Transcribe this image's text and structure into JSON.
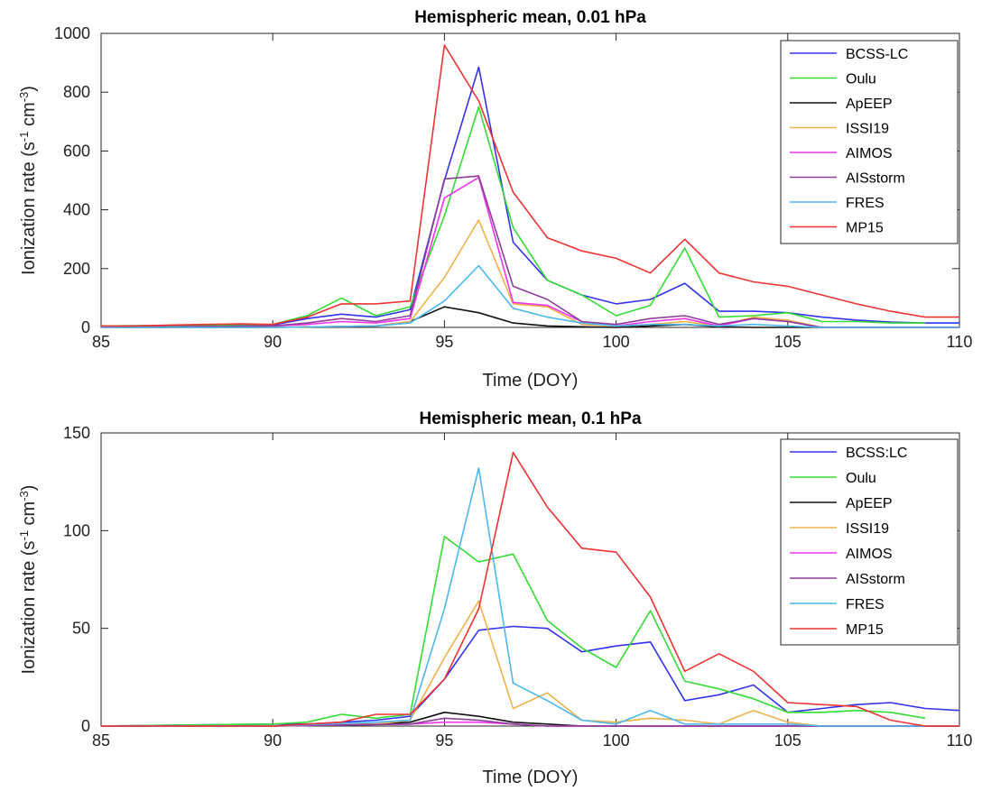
{
  "chart_data": [
    {
      "type": "line",
      "title": "Hemispheric mean, 0.01 hPa",
      "xlabel": "Time (DOY)",
      "ylabel": "Ionization rate (s^-1 cm^-3)",
      "ylabel_parts": {
        "pre": "Ionization rate (s",
        "sup1": "-1",
        "mid": " cm",
        "sup2": "-3",
        "post": ")"
      },
      "xlim": [
        85,
        110
      ],
      "ylim": [
        0,
        1000
      ],
      "xticks": [
        "85",
        "90",
        "95",
        "100",
        "105",
        "110"
      ],
      "yticks": [
        "0",
        "200",
        "400",
        "600",
        "800",
        "1000"
      ],
      "grid": false,
      "legend_position": "top-right",
      "series": [
        {
          "name": "BCSS-LC",
          "color": "#3333ee",
          "x": [
            85,
            90,
            91,
            92,
            93,
            94,
            95,
            96,
            97,
            98,
            99,
            100,
            101,
            102,
            103,
            104,
            105,
            106,
            107,
            108,
            109,
            110
          ],
          "y": [
            5,
            8,
            30,
            45,
            35,
            60,
            500,
            885,
            290,
            160,
            110,
            80,
            95,
            150,
            55,
            55,
            50,
            35,
            25,
            18,
            15,
            15
          ]
        },
        {
          "name": "Oulu",
          "color": "#33dd33",
          "x": [
            85,
            90,
            91,
            92,
            93,
            94,
            95,
            96,
            97,
            98,
            99,
            100,
            101,
            102,
            103,
            104,
            105,
            106,
            107,
            108,
            109
          ],
          "y": [
            5,
            10,
            40,
            100,
            40,
            70,
            380,
            750,
            340,
            160,
            110,
            40,
            75,
            270,
            35,
            40,
            50,
            20,
            20,
            15,
            15
          ]
        },
        {
          "name": "ApEEP",
          "color": "#111111",
          "x": [
            85,
            90,
            93,
            94,
            95,
            96,
            97,
            98,
            99,
            100,
            101,
            102,
            103,
            104,
            105,
            106,
            110
          ],
          "y": [
            0,
            0,
            5,
            20,
            70,
            50,
            15,
            5,
            2,
            0,
            5,
            10,
            2,
            0,
            0,
            0,
            0
          ]
        },
        {
          "name": "ISSI19",
          "color": "#eeb24a",
          "x": [
            85,
            90,
            93,
            94,
            95,
            96,
            97,
            98,
            99,
            100,
            101,
            102,
            103,
            104,
            105,
            106,
            110
          ],
          "y": [
            0,
            0,
            5,
            20,
            170,
            365,
            80,
            70,
            10,
            5,
            10,
            20,
            5,
            35,
            25,
            0,
            0
          ]
        },
        {
          "name": "AIMOS",
          "color": "#ee33ee",
          "x": [
            85,
            90,
            91,
            92,
            93,
            94,
            95,
            96,
            97,
            98,
            99,
            100,
            101,
            102,
            103,
            104,
            105,
            106,
            110
          ],
          "y": [
            0,
            5,
            10,
            20,
            15,
            30,
            440,
            510,
            85,
            75,
            20,
            5,
            20,
            30,
            5,
            30,
            20,
            0,
            0
          ]
        },
        {
          "name": "AISstorm",
          "color": "#8e3e9a",
          "x": [
            85,
            90,
            91,
            92,
            93,
            94,
            95,
            96,
            97,
            98,
            99,
            100,
            101,
            102,
            103,
            104,
            105,
            106,
            110
          ],
          "y": [
            0,
            5,
            15,
            30,
            20,
            40,
            505,
            515,
            140,
            95,
            20,
            10,
            30,
            40,
            10,
            30,
            20,
            0,
            0
          ]
        },
        {
          "name": "FRES",
          "color": "#4db8ee",
          "x": [
            85,
            90,
            93,
            94,
            95,
            96,
            97,
            98,
            99,
            100,
            101,
            102,
            103,
            104,
            105,
            106,
            110
          ],
          "y": [
            0,
            0,
            5,
            15,
            90,
            210,
            65,
            35,
            15,
            5,
            10,
            10,
            5,
            10,
            5,
            0,
            0
          ]
        },
        {
          "name": "MP15",
          "color": "#ee3333",
          "x": [
            85,
            86,
            87,
            88,
            89,
            90,
            91,
            92,
            93,
            94,
            95,
            96,
            97,
            98,
            99,
            100,
            101,
            102,
            103,
            104,
            105,
            106,
            107,
            108,
            109,
            110
          ],
          "y": [
            5,
            5,
            8,
            10,
            12,
            10,
            35,
            80,
            80,
            90,
            960,
            770,
            460,
            305,
            260,
            235,
            185,
            300,
            185,
            155,
            140,
            110,
            80,
            55,
            35,
            35
          ]
        }
      ]
    },
    {
      "type": "line",
      "title": "Hemispheric mean, 0.1 hPa",
      "xlabel": "Time (DOY)",
      "ylabel": "Ionization rate (s^-1 cm^-3)",
      "ylabel_parts": {
        "pre": "Ionization rate (s",
        "sup1": "-1",
        "mid": " cm",
        "sup2": "-3",
        "post": ")"
      },
      "xlim": [
        85,
        110
      ],
      "ylim": [
        0,
        150
      ],
      "xticks": [
        "85",
        "90",
        "95",
        "100",
        "105",
        "110"
      ],
      "yticks": [
        "0",
        "50",
        "100",
        "150"
      ],
      "grid": false,
      "legend_position": "top-right",
      "series": [
        {
          "name": "BCSS:LC",
          "color": "#3333ee",
          "x": [
            85,
            90,
            91,
            92,
            93,
            94,
            95,
            96,
            97,
            98,
            99,
            100,
            101,
            102,
            103,
            104,
            105,
            106,
            107,
            108,
            109,
            110
          ],
          "y": [
            0,
            1,
            1,
            2,
            3,
            5,
            24,
            49,
            51,
            50,
            38,
            41,
            43,
            13,
            16,
            21,
            7,
            9,
            11,
            12,
            9,
            8
          ]
        },
        {
          "name": "Oulu",
          "color": "#33dd33",
          "x": [
            85,
            90,
            91,
            92,
            93,
            94,
            95,
            96,
            97,
            98,
            99,
            100,
            101,
            102,
            103,
            104,
            105,
            106,
            107,
            108,
            109
          ],
          "y": [
            0,
            1,
            2,
            6,
            4,
            6,
            97,
            84,
            88,
            54,
            40,
            30,
            59,
            23,
            19,
            14,
            7,
            7,
            8,
            7,
            4
          ]
        },
        {
          "name": "ApEEP",
          "color": "#111111",
          "x": [
            85,
            90,
            93,
            94,
            95,
            96,
            97,
            98,
            99,
            100,
            105,
            110
          ],
          "y": [
            0,
            0,
            1,
            2,
            7,
            5,
            2,
            1,
            0,
            0,
            0,
            0
          ]
        },
        {
          "name": "ISSI19",
          "color": "#eeb24a",
          "x": [
            85,
            90,
            93,
            94,
            95,
            96,
            97,
            98,
            99,
            100,
            101,
            102,
            103,
            104,
            105,
            106,
            110
          ],
          "y": [
            0,
            0,
            1,
            3,
            35,
            64,
            9,
            17,
            3,
            2,
            4,
            3,
            1,
            8,
            2,
            0,
            0
          ]
        },
        {
          "name": "AIMOS",
          "color": "#ee33ee",
          "x": [
            85,
            90,
            94,
            95,
            96,
            97,
            98,
            105,
            110
          ],
          "y": [
            0,
            0,
            1,
            2,
            2,
            1,
            0,
            0,
            0
          ]
        },
        {
          "name": "AISstorm",
          "color": "#8e3e9a",
          "x": [
            85,
            90,
            94,
            95,
            96,
            97,
            98,
            105,
            110
          ],
          "y": [
            0,
            0,
            1,
            4,
            3,
            1,
            0,
            0,
            0
          ]
        },
        {
          "name": "FRES",
          "color": "#4db8ee",
          "x": [
            85,
            90,
            93,
            94,
            95,
            96,
            97,
            98,
            99,
            100,
            101,
            102,
            103,
            104,
            105,
            106,
            110
          ],
          "y": [
            0,
            0,
            2,
            3,
            60,
            132,
            22,
            13,
            3,
            1,
            8,
            1,
            1,
            1,
            1,
            0,
            0
          ]
        },
        {
          "name": "MP15",
          "color": "#ee3333",
          "x": [
            85,
            90,
            91,
            92,
            93,
            94,
            95,
            96,
            97,
            98,
            99,
            100,
            101,
            102,
            103,
            104,
            105,
            106,
            107,
            108,
            109,
            110
          ],
          "y": [
            0,
            0,
            1,
            2,
            6,
            6,
            24,
            60,
            140,
            112,
            91,
            89,
            66,
            28,
            37,
            28,
            12,
            11,
            10,
            3,
            0,
            0
          ]
        }
      ]
    }
  ]
}
